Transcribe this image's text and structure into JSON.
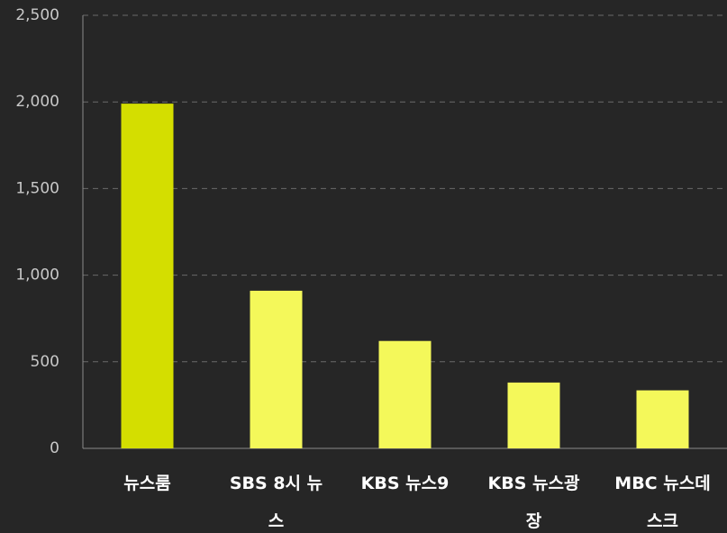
{
  "chart_data": {
    "type": "bar",
    "categories": [
      "뉴스룸",
      "SBS 8시 뉴스",
      "KBS 뉴스9",
      "KBS 뉴스광장",
      "MBC 뉴스데스크"
    ],
    "values": [
      1990,
      910,
      620,
      380,
      335
    ],
    "colors": [
      "#d4de00",
      "#f4f85a",
      "#f4f85a",
      "#f4f85a",
      "#f4f85a"
    ],
    "ylim": [
      0,
      2500
    ],
    "yticks": [
      0,
      500,
      {
        "value": 1000,
        "label": "1,000"
      },
      {
        "value": 1500,
        "label": "1,500"
      },
      {
        "value": 2000,
        "label": "2,000"
      },
      {
        "value": 2500,
        "label": "2,500"
      }
    ],
    "grid": true
  }
}
